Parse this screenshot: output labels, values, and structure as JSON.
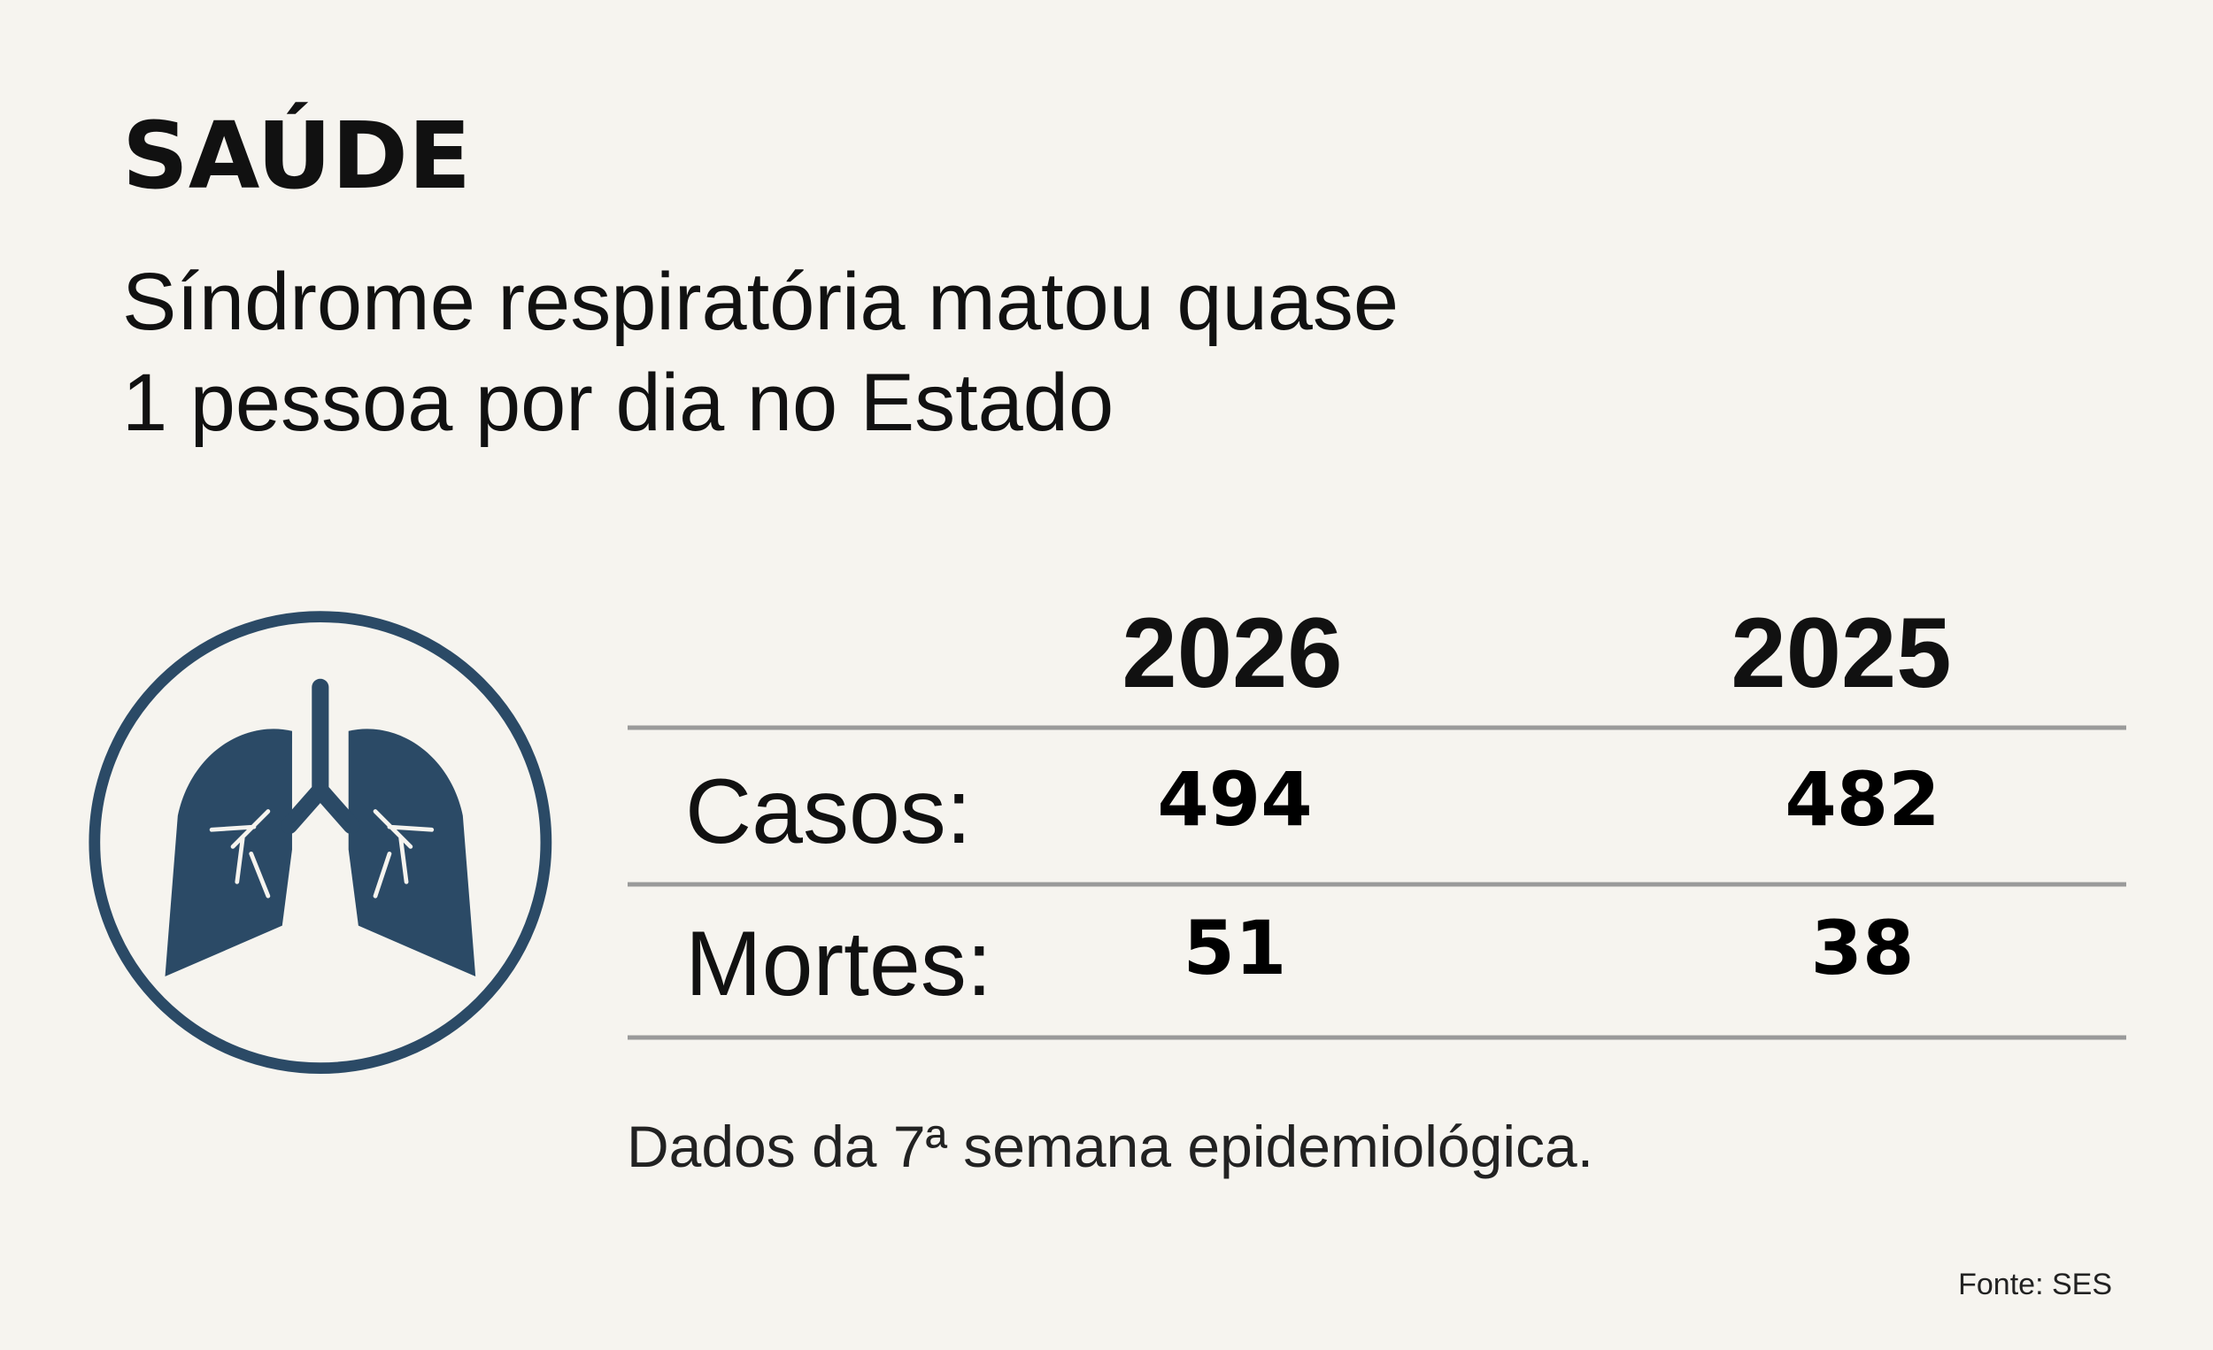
{
  "header": {
    "section": "SAÚDE",
    "title_lines": [
      "Síndrome respiratória matou quase",
      "1 pessoa por dia no Estado"
    ]
  },
  "table": {
    "columns": [
      "2026",
      "2025"
    ],
    "rows": [
      {
        "label": "Casos:",
        "values": [
          494,
          482
        ]
      },
      {
        "label": "Mortes:",
        "values": [
          51,
          38
        ]
      }
    ]
  },
  "footnote": "Dados da 7ª semana epidemiológica.",
  "source": "Fonte: SES"
}
